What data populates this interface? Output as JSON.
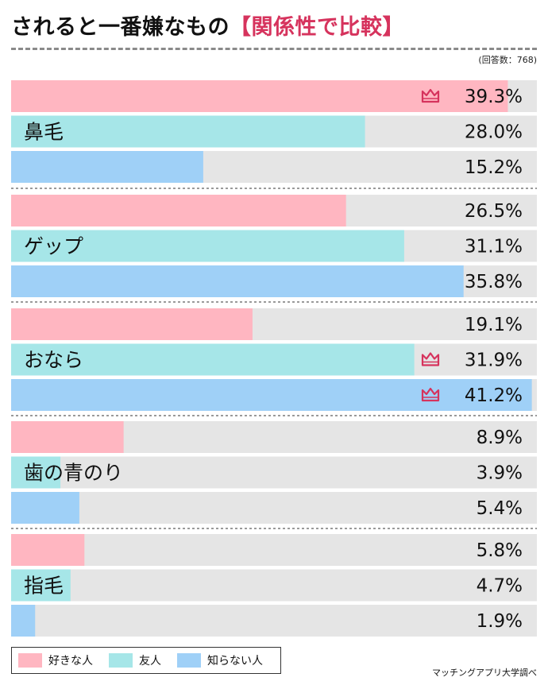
{
  "title": {
    "main": "されると一番嫌なもの",
    "accent": "【関係性で比較】"
  },
  "note": "(回答数：768)",
  "source": "マッチングアプリ大学調べ",
  "colors": {
    "好きな人": "#ffb6c1",
    "友人": "#a6e6e8",
    "知らない人": "#9fd0f7",
    "track": "#e5e5e5",
    "crown": "#d6335d"
  },
  "legend": [
    {
      "label": "好きな人",
      "color": "#ffb6c1"
    },
    {
      "label": "友人",
      "color": "#a6e6e8"
    },
    {
      "label": "知らない人",
      "color": "#9fd0f7"
    }
  ],
  "chart_data": {
    "type": "bar",
    "orientation": "horizontal",
    "unit": "%",
    "xlim": [
      0,
      40
    ],
    "categories": [
      "鼻毛",
      "ゲップ",
      "おなら",
      "歯の青のり",
      "指毛"
    ],
    "series": [
      {
        "name": "好きな人",
        "color": "#ffb6c1",
        "values": [
          39.3,
          26.5,
          19.1,
          8.9,
          5.8
        ],
        "labels": [
          "39.3%",
          "26.5%",
          "19.1%",
          "8.9%",
          "5.8%"
        ]
      },
      {
        "name": "友人",
        "color": "#a6e6e8",
        "values": [
          28.0,
          31.1,
          31.9,
          3.9,
          4.7
        ],
        "labels": [
          "28.0%",
          "31.1%",
          "31.9%",
          "3.9%",
          "4.7%"
        ]
      },
      {
        "name": "知らない人",
        "color": "#9fd0f7",
        "values": [
          15.2,
          35.8,
          41.2,
          5.4,
          1.9
        ],
        "labels": [
          "15.2%",
          "35.8%",
          "41.2%",
          "5.4%",
          "1.9%"
        ]
      }
    ],
    "top_markers": [
      {
        "series": "好きな人",
        "category": "鼻毛",
        "icon": "crown-icon"
      },
      {
        "series": "友人",
        "category": "おなら",
        "icon": "crown-icon"
      },
      {
        "series": "知らない人",
        "category": "おなら",
        "icon": "crown-icon"
      }
    ],
    "legend_position": "bottom-left",
    "grid": false
  }
}
